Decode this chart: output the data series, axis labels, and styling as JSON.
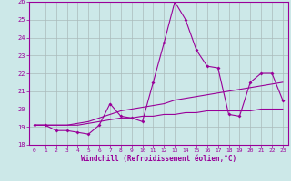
{
  "background_color": "#cce8e8",
  "grid_color": "#b0c8c8",
  "line_color": "#990099",
  "xlim": [
    -0.5,
    23.5
  ],
  "ylim": [
    18,
    26
  ],
  "yticks": [
    18,
    19,
    20,
    21,
    22,
    23,
    24,
    25,
    26
  ],
  "xticks": [
    0,
    1,
    2,
    3,
    4,
    5,
    6,
    7,
    8,
    9,
    10,
    11,
    12,
    13,
    14,
    15,
    16,
    17,
    18,
    19,
    20,
    21,
    22,
    23
  ],
  "xlabel": "Windchill (Refroidissement éolien,°C)",
  "series1": [
    19.1,
    19.1,
    18.8,
    18.8,
    18.7,
    18.6,
    19.1,
    20.3,
    19.6,
    19.5,
    19.3,
    21.5,
    23.7,
    26.0,
    25.0,
    23.3,
    22.4,
    22.3,
    19.7,
    19.6,
    21.5,
    22.0,
    22.0,
    20.5
  ],
  "series2": [
    19.1,
    19.1,
    19.1,
    19.1,
    19.2,
    19.3,
    19.5,
    19.7,
    19.9,
    20.0,
    20.1,
    20.2,
    20.3,
    20.5,
    20.6,
    20.7,
    20.8,
    20.9,
    21.0,
    21.1,
    21.2,
    21.3,
    21.4,
    21.5
  ],
  "series3": [
    19.1,
    19.1,
    19.1,
    19.1,
    19.1,
    19.2,
    19.3,
    19.4,
    19.5,
    19.5,
    19.6,
    19.6,
    19.7,
    19.7,
    19.8,
    19.8,
    19.9,
    19.9,
    19.9,
    19.9,
    19.9,
    20.0,
    20.0,
    20.0
  ]
}
